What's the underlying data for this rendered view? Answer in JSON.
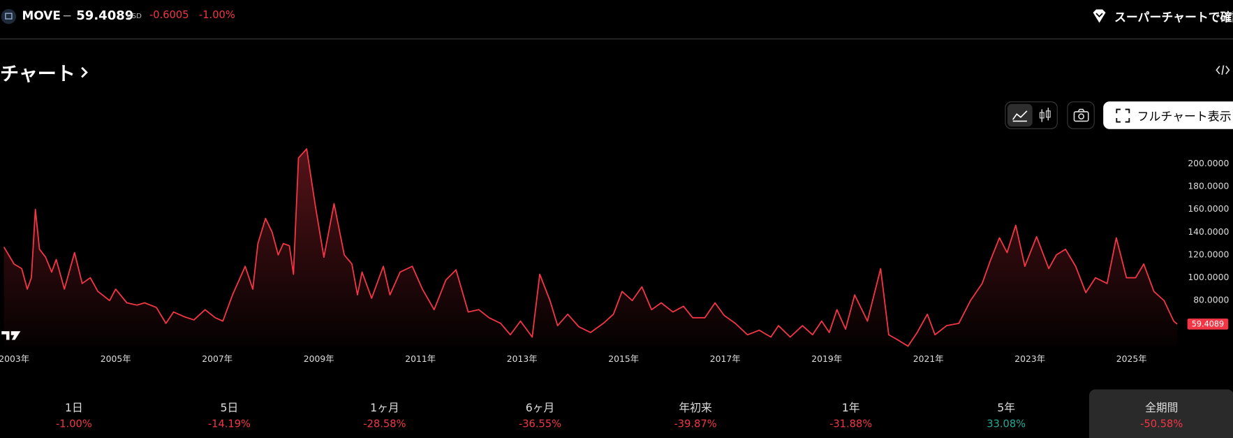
{
  "header": {
    "symbol": "MOVE",
    "separator": "−",
    "price": "59.4089",
    "currency": "USD",
    "change": "-0.6005",
    "change_pct": "-1.00%",
    "super_chart": "スーパーチャートで確認"
  },
  "section_title": "チャート",
  "full_chart_button": "フルチャート表示",
  "chart_data": {
    "type": "line",
    "color": "#f23645",
    "x": [
      2002.8,
      2003.0,
      2003.15,
      2003.26,
      2003.34,
      2003.42,
      2003.5,
      2003.62,
      2003.74,
      2003.83,
      2003.99,
      2004.19,
      2004.34,
      2004.5,
      2004.65,
      2004.88,
      2005.0,
      2005.22,
      2005.42,
      2005.57,
      2005.8,
      2005.99,
      2006.14,
      2006.34,
      2006.54,
      2006.76,
      2006.96,
      2007.11,
      2007.3,
      2007.55,
      2007.7,
      2007.8,
      2007.95,
      2008.08,
      2008.2,
      2008.3,
      2008.42,
      2008.5,
      2008.6,
      2008.76,
      2008.93,
      2009.1,
      2009.3,
      2009.5,
      2009.65,
      2009.76,
      2009.85,
      2010.04,
      2010.27,
      2010.4,
      2010.6,
      2010.84,
      2011.04,
      2011.27,
      2011.5,
      2011.7,
      2011.94,
      2012.15,
      2012.35,
      2012.58,
      2012.77,
      2012.97,
      2013.2,
      2013.35,
      2013.55,
      2013.7,
      2013.9,
      2014.12,
      2014.35,
      2014.6,
      2014.8,
      2014.97,
      2015.17,
      2015.36,
      2015.55,
      2015.74,
      2015.97,
      2016.18,
      2016.36,
      2016.6,
      2016.8,
      2016.98,
      2017.2,
      2017.44,
      2017.67,
      2017.9,
      2018.05,
      2018.28,
      2018.52,
      2018.72,
      2018.9,
      2019.05,
      2019.2,
      2019.37,
      2019.55,
      2019.8,
      2020.06,
      2020.22,
      2020.42,
      2020.6,
      2020.78,
      2020.98,
      2021.13,
      2021.36,
      2021.6,
      2021.83,
      2022.06,
      2022.22,
      2022.4,
      2022.55,
      2022.72,
      2022.9,
      2023.13,
      2023.37,
      2023.52,
      2023.7,
      2023.9,
      2024.1,
      2024.29,
      2024.52,
      2024.7,
      2024.9,
      2025.08,
      2025.24,
      2025.44,
      2025.64,
      2025.83,
      2025.9
    ],
    "values": [
      127,
      112,
      108,
      90,
      100,
      160,
      125,
      118,
      105,
      116,
      90,
      122,
      95,
      100,
      88,
      80,
      90,
      78,
      76,
      78,
      74,
      60,
      70,
      66,
      63,
      72,
      65,
      62,
      85,
      110,
      90,
      130,
      152,
      140,
      120,
      130,
      128,
      103,
      205,
      213,
      163,
      118,
      165,
      120,
      112,
      85,
      105,
      82,
      110,
      85,
      105,
      110,
      90,
      72,
      98,
      107,
      70,
      72,
      65,
      60,
      50,
      62,
      48,
      103,
      80,
      58,
      68,
      57,
      52,
      60,
      68,
      88,
      80,
      92,
      72,
      78,
      70,
      75,
      65,
      65,
      78,
      67,
      60,
      50,
      54,
      48,
      58,
      48,
      58,
      50,
      62,
      52,
      72,
      55,
      85,
      62,
      108,
      50,
      45,
      40,
      52,
      68,
      50,
      58,
      60,
      80,
      95,
      115,
      135,
      122,
      146,
      110,
      136,
      108,
      120,
      125,
      110,
      87,
      100,
      95,
      135,
      100,
      100,
      112,
      88,
      80,
      62,
      59.4089
    ],
    "xlim": [
      2002.8,
      2026.1
    ],
    "xticks": [
      {
        "value": 2003,
        "label": "2003年"
      },
      {
        "value": 2005,
        "label": "2005年"
      },
      {
        "value": 2007,
        "label": "2007年"
      },
      {
        "value": 2009,
        "label": "2009年"
      },
      {
        "value": 2011,
        "label": "2011年"
      },
      {
        "value": 2013,
        "label": "2013年"
      },
      {
        "value": 2015,
        "label": "2015年"
      },
      {
        "value": 2017,
        "label": "2017年"
      },
      {
        "value": 2019,
        "label": "2019年"
      },
      {
        "value": 2021,
        "label": "2021年"
      },
      {
        "value": 2023,
        "label": "2023年"
      },
      {
        "value": 2025,
        "label": "2025年"
      }
    ],
    "ylim": [
      40,
      220
    ],
    "yticks": [
      {
        "value": 80,
        "label": "80.0000"
      },
      {
        "value": 100,
        "label": "100.0000"
      },
      {
        "value": 120,
        "label": "120.0000"
      },
      {
        "value": 140,
        "label": "140.0000"
      },
      {
        "value": 160,
        "label": "160.0000"
      },
      {
        "value": 180,
        "label": "180.0000"
      },
      {
        "value": 200,
        "label": "200.0000"
      }
    ]
  },
  "periods": [
    {
      "label": "1日",
      "change": "-1.00%"
    },
    {
      "label": "5日",
      "change": "-14.19%"
    },
    {
      "label": "1ヶ月",
      "change": "-28.58%"
    },
    {
      "label": "6ヶ月",
      "change": "-36.55%"
    },
    {
      "label": "年初来",
      "change": "-39.87%"
    },
    {
      "label": "1年",
      "change": "-31.88%"
    },
    {
      "label": "5年",
      "change": "33.08%"
    },
    {
      "label": "全期間",
      "change": "-50.58%"
    }
  ]
}
